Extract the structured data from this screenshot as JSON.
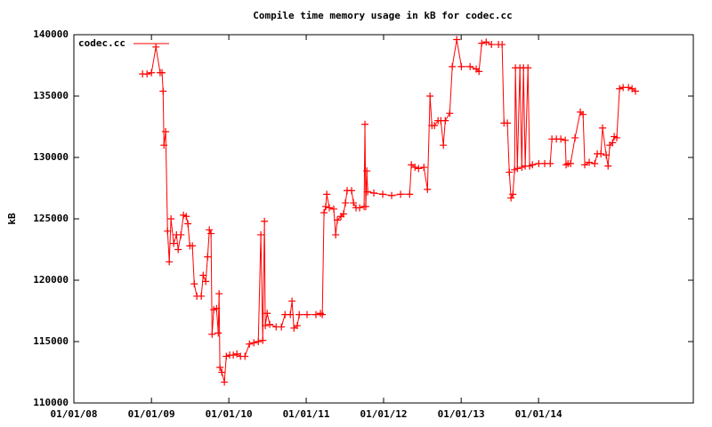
{
  "chart_data": {
    "type": "line",
    "title": "Compile time memory usage in kB for codec.cc",
    "ylabel": "kB",
    "x": [
      "2008-11-20",
      "2008-12-11",
      "2009-01-01",
      "2009-01-22",
      "2009-02-11",
      "2009-02-20",
      "2009-02-25",
      "2009-03-01",
      "2009-03-09",
      "2009-03-18",
      "2009-03-26",
      "2009-04-03",
      "2009-04-16",
      "2009-04-29",
      "2009-05-07",
      "2009-05-20",
      "2009-06-01",
      "2009-06-14",
      "2009-06-22",
      "2009-07-01",
      "2009-07-13",
      "2009-07-22",
      "2009-08-03",
      "2009-08-24",
      "2009-09-02",
      "2009-09-14",
      "2009-09-23",
      "2009-10-01",
      "2009-10-09",
      "2009-10-14",
      "2009-10-22",
      "2009-11-04",
      "2009-11-12",
      "2009-11-16",
      "2009-11-20",
      "2009-11-29",
      "2009-12-11",
      "2009-12-20",
      "2010-01-05",
      "2010-01-22",
      "2010-02-08",
      "2010-02-25",
      "2010-03-18",
      "2010-04-08",
      "2010-04-29",
      "2010-05-20",
      "2010-06-01",
      "2010-06-10",
      "2010-06-18",
      "2010-06-22",
      "2010-07-01",
      "2010-07-13",
      "2010-08-12",
      "2010-09-06",
      "2010-09-23",
      "2010-10-18",
      "2010-10-26",
      "2010-11-04",
      "2010-11-20",
      "2010-11-29",
      "2011-01-05",
      "2011-02-16",
      "2011-03-09",
      "2011-03-18",
      "2011-03-26",
      "2011-04-03",
      "2011-04-08",
      "2011-04-20",
      "2011-05-11",
      "2011-05-20",
      "2011-05-28",
      "2011-06-14",
      "2011-06-26",
      "2011-07-05",
      "2011-07-13",
      "2011-08-03",
      "2011-08-12",
      "2011-08-24",
      "2011-09-10",
      "2011-10-01",
      "2011-10-05",
      "2011-10-09",
      "2011-10-14",
      "2011-10-18",
      "2011-11-16",
      "2011-12-28",
      "2012-02-08",
      "2012-03-21",
      "2012-05-03",
      "2012-05-11",
      "2012-05-28",
      "2012-06-14",
      "2012-07-09",
      "2012-07-26",
      "2012-08-07",
      "2012-08-16",
      "2012-08-28",
      "2012-09-14",
      "2012-09-27",
      "2012-10-09",
      "2012-10-18",
      "2012-11-08",
      "2012-11-20",
      "2012-12-11",
      "2013-01-02",
      "2013-02-12",
      "2013-03-13",
      "2013-03-26",
      "2013-04-08",
      "2013-04-29",
      "2013-05-24",
      "2013-06-26",
      "2013-07-13",
      "2013-07-22",
      "2013-08-07",
      "2013-08-16",
      "2013-08-24",
      "2013-09-02",
      "2013-09-10",
      "2013-09-14",
      "2013-09-23",
      "2013-10-05",
      "2013-10-14",
      "2013-10-22",
      "2013-10-30",
      "2013-11-12",
      "2013-11-20",
      "2013-12-03",
      "2014-01-02",
      "2014-01-30",
      "2014-02-25",
      "2014-03-05",
      "2014-03-26",
      "2014-04-16",
      "2014-05-07",
      "2014-05-11",
      "2014-05-20",
      "2014-06-01",
      "2014-06-22",
      "2014-07-17",
      "2014-07-30",
      "2014-08-07",
      "2014-08-28",
      "2014-09-23",
      "2014-10-05",
      "2014-10-22",
      "2014-10-30",
      "2014-11-16",
      "2014-11-25",
      "2014-12-03",
      "2014-12-16",
      "2014-12-24",
      "2015-01-05",
      "2015-01-18",
      "2015-02-04",
      "2015-03-01",
      "2015-03-18",
      "2015-04-03"
    ],
    "series": [
      {
        "name": "codec.cc",
        "color": "#ff0000",
        "values": [
          136800,
          136800,
          136900,
          139000,
          136900,
          136900,
          135400,
          131000,
          132100,
          124000,
          121500,
          125000,
          123000,
          123700,
          122500,
          123700,
          125300,
          125200,
          124600,
          122800,
          122800,
          119700,
          118700,
          118700,
          120400,
          119900,
          121900,
          124100,
          123800,
          115600,
          117600,
          117700,
          115700,
          118900,
          112900,
          112500,
          111700,
          113800,
          113900,
          113900,
          114000,
          113800,
          113800,
          114800,
          114900,
          115000,
          123700,
          115100,
          124800,
          116300,
          117300,
          116400,
          116200,
          116200,
          117200,
          117200,
          118300,
          116100,
          116300,
          117200,
          117200,
          117200,
          117300,
          117200,
          125500,
          126000,
          127000,
          125900,
          125800,
          123700,
          124900,
          125200,
          125400,
          126300,
          127300,
          127300,
          126300,
          125900,
          125900,
          126000,
          132700,
          126000,
          128900,
          127200,
          127100,
          127000,
          126900,
          127000,
          127000,
          129400,
          129200,
          129100,
          129200,
          127400,
          135000,
          132600,
          132600,
          133000,
          133000,
          131000,
          133000,
          133600,
          137400,
          139600,
          137400,
          137400,
          137200,
          137000,
          139300,
          139400,
          139200,
          139200,
          139200,
          132800,
          132800,
          128800,
          126700,
          127000,
          129000,
          137300,
          129100,
          137300,
          129200,
          137300,
          129300,
          137300,
          129300,
          129400,
          129500,
          129500,
          129500,
          131500,
          131500,
          131500,
          131400,
          129400,
          129500,
          129500,
          131600,
          133700,
          133500,
          129400,
          129600,
          129500,
          130300,
          130300,
          132400,
          130200,
          129300,
          131000,
          131200,
          131700,
          131600,
          135600,
          135700,
          135700,
          135600,
          135400
        ]
      }
    ],
    "xlim": [
      "2008-01-01",
      "2016-01-01"
    ],
    "xticks": [
      {
        "value": "2008-01-01",
        "label": "01/01/08"
      },
      {
        "value": "2009-01-01",
        "label": "01/01/09"
      },
      {
        "value": "2010-01-01",
        "label": "01/01/10"
      },
      {
        "value": "2011-01-01",
        "label": "01/01/11"
      },
      {
        "value": "2012-01-01",
        "label": "01/01/12"
      },
      {
        "value": "2013-01-01",
        "label": "01/01/13"
      },
      {
        "value": "2014-01-01",
        "label": "01/01/14"
      }
    ],
    "ylim": [
      110000,
      140000
    ],
    "yticks": [
      110000,
      115000,
      120000,
      125000,
      130000,
      135000,
      140000
    ],
    "legend": "top-left",
    "marker": "plus"
  }
}
